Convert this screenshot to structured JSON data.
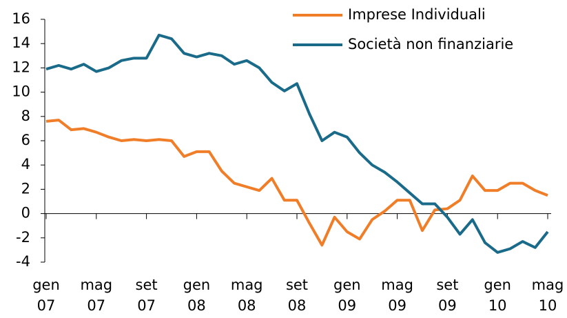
{
  "chart_data": {
    "type": "line",
    "categories": [
      "gen 07",
      null,
      null,
      null,
      "mag 07",
      null,
      null,
      null,
      "set 07",
      null,
      null,
      null,
      "gen 08",
      null,
      null,
      null,
      "mag 08",
      null,
      null,
      null,
      "set 08",
      null,
      null,
      null,
      "gen 09",
      null,
      null,
      null,
      "mag 09",
      null,
      null,
      null,
      "set 09",
      null,
      null,
      null,
      "gen 10",
      null,
      null,
      null,
      "mag 10"
    ],
    "series": [
      {
        "name": "Imprese Individuali",
        "color": "#f07d28",
        "values": [
          7.6,
          7.7,
          6.9,
          7.0,
          6.7,
          6.3,
          6.0,
          6.1,
          6.0,
          6.1,
          6.0,
          4.7,
          5.1,
          5.1,
          3.5,
          2.5,
          2.2,
          1.9,
          2.9,
          1.1,
          1.1,
          -0.8,
          -2.6,
          -0.3,
          -1.5,
          -2.1,
          -0.5,
          0.2,
          1.1,
          1.1,
          -1.4,
          0.3,
          0.4,
          1.1,
          3.1,
          1.9,
          1.9,
          2.5,
          2.5,
          1.9,
          1.5
        ]
      },
      {
        "name": "Società non finanziarie",
        "color": "#1a6a8a",
        "values": [
          11.9,
          12.2,
          11.9,
          12.3,
          11.7,
          12.0,
          12.6,
          12.8,
          12.8,
          14.7,
          14.4,
          13.2,
          12.9,
          13.2,
          13.0,
          12.3,
          12.6,
          12.0,
          10.8,
          10.1,
          10.7,
          8.2,
          6.0,
          6.7,
          6.3,
          5.0,
          4.0,
          3.4,
          2.6,
          1.7,
          0.8,
          0.8,
          -0.3,
          -1.7,
          -0.5,
          -2.4,
          -3.2,
          -2.9,
          -2.3,
          -2.8,
          -1.5
        ]
      }
    ],
    "ylim": [
      -4,
      16
    ],
    "yticks": [
      -4,
      -2,
      0,
      2,
      4,
      6,
      8,
      10,
      12,
      14,
      16
    ],
    "legend": "top-right"
  }
}
